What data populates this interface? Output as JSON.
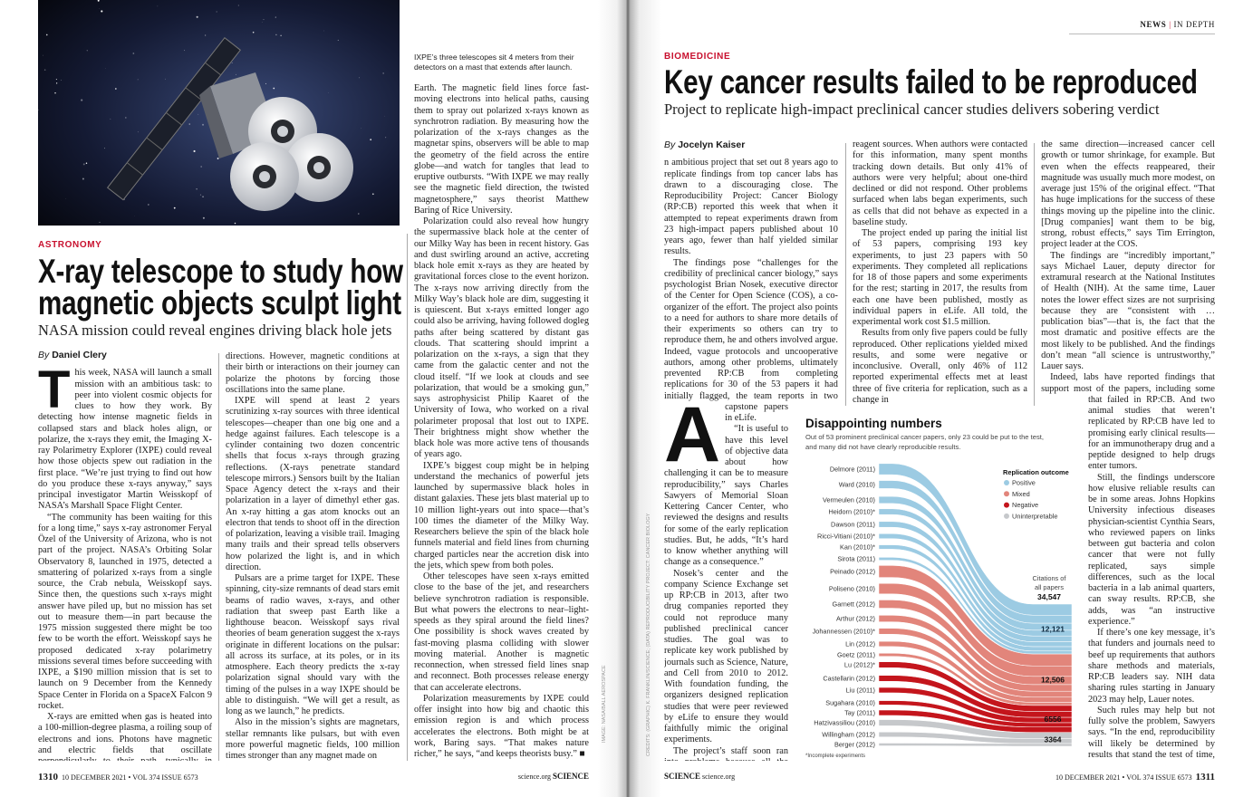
{
  "left_page": {
    "image_caption": "IXPE’s three telescopes sit 4 meters from their detectors on a mast that extends after launch.",
    "image_credit": "IMAGE: NASA/BALL AEROSPACE",
    "kicker": "ASTRONOMY",
    "headline_lines": [
      "X-ray telescope to study how",
      "magnetic objects sculpt light"
    ],
    "deck": "NASA mission could reveal engines driving black hole jets",
    "byline_prefix": "By",
    "byline_author": "Daniel Clery",
    "dropcap": "T",
    "col1": [
      "his week, NASA will launch a small mission with an ambitious task: to peer into violent cosmic objects for clues to how they work. By detecting how intense magnetic fields in collapsed stars and black holes align, or polarize, the x-rays they emit, the Imaging X-ray Polarimetry Explorer (IXPE) could reveal how those objects spew out radiation in the first place. “We’re just trying to find out how do you produce these x-rays anyway,” says principal investigator Martin Weisskopf of NASA’s Marshall Space Flight Center.",
      "“The community has been waiting for this for a long time,” says x-ray astronomer Feryal Özel of the University of Arizona, who is not part of the project. NASA’s Orbiting Solar Observatory 8, launched in 1975, detected a smattering of polarized x-rays from a single source, the Crab nebula, Weisskopf says. Since then, the questions such x-rays might answer have piled up, but no mission has set out to measure them—in part because the 1975 mission suggested there might be too few to be worth the effort. Weisskopf says he proposed dedicated x-ray polarimetry missions several times before succeeding with IXPE, a $190 million mission that is set to launch on 9 December from the Kennedy Space Center in Florida on a SpaceX Falcon 9 rocket.",
      "X-rays are emitted when gas is heated into a 100-million-degree plasma, a roiling soup of electrons and ions. Photons have magnetic and electric fields that oscillate perpendicularly to their path, typically in random"
    ],
    "col2": [
      "directions. However, magnetic conditions at their birth or interactions on their journey can polarize the photons by forcing those oscillations into the same plane.",
      "IXPE will spend at least 2 years scrutinizing x-ray sources with three identical telescopes—cheaper than one big one and a hedge against failures. Each telescope is a cylinder containing two dozen concentric shells that focus x-rays through grazing reflections. (X-rays penetrate standard telescope mirrors.) Sensors built by the Italian Space Agency detect the x-rays and their polarization in a layer of dimethyl ether gas. An x-ray hitting a gas atom knocks out an electron that tends to shoot off in the direction of polarization, leaving a visible trail. Imaging many trails and their spread tells observers how polarized the light is, and in which direction.",
      "Pulsars are a prime target for IXPE. These spinning, city-size remnants of dead stars emit beams of radio waves, x-rays, and other radiation that sweep past Earth like a lighthouse beacon. Weisskopf says rival theories of beam generation suggest the x-rays originate in different locations on the pulsar: all across its surface, at its poles, or in its atmosphere. Each theory predicts the x-ray polarization signal should vary with the timing of the pulses in a way IXPE should be able to distinguish. “We will get a result, as long as we launch,” he predicts.",
      "Also in the mission’s sights are magnetars, stellar remnants like pulsars, but with even more powerful magnetic fields, 100 million times stronger than any magnet made on"
    ],
    "col3": [
      "Earth. The magnetic field lines force fast-moving electrons into helical paths, causing them to spray out polarized x-rays known as synchrotron radiation. By measuring how the polarization of the x-rays changes as the magnetar spins, observers will be able to map the geometry of the field across the entire globe—and watch for tangles that lead to eruptive outbursts. “With IXPE we may really see the magnetic field direction, the twisted magnetosphere,” says theorist Matthew Baring of Rice University.",
      "Polarization could also reveal how hungry the supermassive black hole at the center of our Milky Way has been in recent history. Gas and dust swirling around an active, accreting black hole emit x-rays as they are heated by gravitational forces close to the event horizon. The x-rays now arriving directly from the Milky Way’s black hole are dim, suggesting it is quiescent. But x-rays emitted longer ago could also be arriving, having followed dogleg paths after being scattered by distant gas clouds. That scattering should imprint a polarization on the x-rays, a sign that they came from the galactic center and not the cloud itself. “If we look at clouds and see polarization, that would be a smoking gun,” says astrophysicist Philip Kaaret of the University of Iowa, who worked on a rival polarimeter proposal that lost out to IXPE. Their brightness might show whether the black hole was more active tens of thousands of years ago.",
      "IXPE’s biggest coup might be in helping understand the mechanics of powerful jets launched by supermassive black holes in distant galaxies. These jets blast material up to 10 million light-years out into space—that’s 100 times the diameter of the Milky Way. Researchers believe the spin of the black hole funnels material and field lines from churning charged particles near the accretion disk into the jets, which spew from both poles.",
      "Other telescopes have seen x-rays emitted close to the base of the jet, and researchers believe synchrotron radiation is responsible. But what powers the electrons to near–light-speeds as they spiral around the field lines? One possibility is shock waves created by fast-moving plasma colliding with slower moving material. Another is magnetic reconnection, when stressed field lines snap and reconnect. Both processes release energy that can accelerate electrons.",
      "Polarization measurements by IXPE could offer insight into how big and chaotic this emission region is and which process accelerates the electrons. Both might be at work, Baring says. “That makes nature richer,” he says, “and keeps theorists busy.” ■"
    ],
    "footer": {
      "page": "1310",
      "issue": "10 DECEMBER 2021 • VOL 374 ISSUE 6573",
      "site": "science.org",
      "brand": "SCIENCE"
    }
  },
  "right_page": {
    "section": "NEWS",
    "subsection": "IN DEPTH",
    "kicker": "BIOMEDICINE",
    "headline": "Key cancer results failed to be reproduced",
    "deck": "Project to replicate high-impact preclinical cancer studies delivers sobering verdict",
    "byline_prefix": "By",
    "byline_author": "Jocelyn Kaiser",
    "dropcap": "A",
    "graphic_credit": "CREDITS: (GRAPHIC) K. FRANKLIN/SCIENCE; (DATA) REPRODUCIBILITY PROJECT: CANCER BIOLOGY",
    "col1": [
      "n ambitious project that set out 8 years ago to replicate findings from top cancer labs has drawn to a discouraging close. The Reproducibility Project: Cancer Biology (RP:CB) reported this week that when it attempted to repeat experiments drawn from 23 high-impact papers published about 10 years ago, fewer than half yielded similar results.",
      "The findings pose “challenges for the credibility of preclinical cancer biology,” says psychologist Brian Nosek, executive director of the Center for Open Science (COS), a co-organizer of the effort. The project also points to a need for authors to share more details of their experiments so others can try to reproduce them, he and others involved argue. Indeed, vague protocols and uncooperative authors, among other problems, ultimately prevented RP:CB from completing replications for 30 of the 53 papers it had initially flagged, the team reports in two capstone papers in eLife.",
      "“It is useful to have this level of objective data about how challenging it can be to measure reproducibility,” says Charles Sawyers of Memorial Sloan Kettering Cancer Center, who reviewed the designs and results for some of the early replication studies. But, he adds, “It’s hard to know whether anything will change as a consequence.”",
      "Nosek’s center and the company Science Exchange set up RP:CB in 2013, after two drug companies reported they could not reproduce many published preclinical cancer studies. The goal was to replicate key work published by journals such as Science, Nature, and Cell from 2010 to 2012. With foundation funding, the organizers designed replication studies that were peer reviewed by eLife to ensure they would faithfully mimic the original experiments.",
      "The project’s staff soon ran into problems because all the original papers lacked details such as underlying data, protocols, statistical code, and"
    ],
    "col2": [
      "reagent sources. When authors were contacted for this information, many spent months tracking down details. But only 41% of authors were very helpful; about one-third declined or did not respond. Other problems surfaced when labs began experiments, such as cells that did not behave as expected in a baseline study.",
      "The project ended up paring the initial list of 53 papers, comprising 193 key experiments, to just 23 papers with 50 experiments. They completed all replications for 18 of those papers and some experiments for the rest; starting in 2017, the results from each one have been published, mostly as individual papers in eLife. All told, the experimental work cost $1.5 million.",
      "Results from only five papers could be fully reproduced. Other replications yielded mixed results, and some were negative or inconclusive. Overall, only 46% of 112 reported experimental effects met at least three of five criteria for replication, such as a change in"
    ],
    "col3": [
      "the same direction—increased cancer cell growth or tumor shrinkage, for example. But even when the effects reappeared, their magnitude was usually much more modest, on average just 15% of the original effect. “That has huge implications for the success of these things moving up the pipeline into the clinic. [Drug companies] want them to be big, strong, robust effects,” says Tim Errington, project leader at the COS.",
      "The findings are “incredibly important,” says Michael Lauer, deputy director for extramural research at the National Institutes of Health (NIH). At the same time, Lauer notes the lower effect sizes are not surprising because they are “consistent with … publication bias”—that is, the fact that the most dramatic and positive effects are the most likely to be published. And the findings don’t mean “all science is untrustworthy,” Lauer says.",
      "Indeed, labs have reported findings that support most of the papers, including some that failed in RP:CB. And two animal studies that weren’t replicated by RP:CB have led to promising early clinical results—for an immunotherapy drug and a peptide designed to help drugs enter tumors.",
      "Still, the findings underscore how elusive reliable results can be in some areas. Johns Hopkins University infectious diseases physician-scientist Cynthia Sears, who reviewed papers on links between gut bacteria and colon cancer that were not fully replicated, says simple differences, such as the local bacteria in a lab animal quarters, can sway results. RP:CB, she adds, was “an instructive experience.”",
      "If there’s one key message, it’s that funders and journals need to beef up requirements that authors share methods and materials, RP:CB leaders say. NIH data sharing rules starting in January 2023 may help, Lauer notes.",
      "Such rules may help but not fully solve the problem, Sawyers says. “In the end, reproducibility will likely be determined by results that stand the test of time, with confirmation and extension of the key findings by other labs.” ■"
    ],
    "footer": {
      "page": "1311",
      "issue": "10 DECEMBER 2021 • VOL 374 ISSUE 6573",
      "site": "science.org",
      "brand": "SCIENCE"
    }
  },
  "chart_data": {
    "type": "sankey",
    "title": "Disappointing numbers",
    "subtitle_lines": [
      "Out of 53 prominent preclinical cancer papers, only 23 could be put to the test,",
      "and many did not have clearly reproducible results."
    ],
    "legend_title": "Replication outcome",
    "legend_placement": "top-right",
    "outcomes": [
      {
        "name": "Positive",
        "color": "#9ccbe3",
        "total": 12121,
        "total_label": "12,121"
      },
      {
        "name": "Mixed",
        "color": "#e2857b",
        "total": 12506,
        "total_label": "12,506"
      },
      {
        "name": "Negative",
        "color": "#c4151c",
        "total": 6556,
        "total_label": "6556"
      },
      {
        "name": "Uninterpretable",
        "color": "#c6c8cb",
        "total": 3364,
        "total_label": "3364"
      }
    ],
    "total_label_lines": [
      "Citations of",
      "all papers"
    ],
    "total_value": "34,547",
    "footnote": "*Incomplete experiments",
    "papers": [
      {
        "label": "Delmore (2011)",
        "outcome": 0,
        "citations": 2700
      },
      {
        "label": "Ward (2010)",
        "outcome": 0,
        "citations": 1950
      },
      {
        "label": "Vermeulen (2010)",
        "outcome": 0,
        "citations": 1700
      },
      {
        "label": "Heidorn (2010)*",
        "outcome": 0,
        "citations": 1400
      },
      {
        "label": "Dawson (2011)",
        "outcome": 0,
        "citations": 1400
      },
      {
        "label": "Ricci-Vitiani (2010)*",
        "outcome": 0,
        "citations": 1200
      },
      {
        "label": "Kan (2010)*",
        "outcome": 0,
        "citations": 1050
      },
      {
        "label": "Sirota (2011)",
        "outcome": 0,
        "citations": 721
      },
      {
        "label": "Peinado (2012)",
        "outcome": 1,
        "citations": 2900
      },
      {
        "label": "Poliseno (2010)",
        "outcome": 1,
        "citations": 2550
      },
      {
        "label": "Garnett (2012)",
        "outcome": 1,
        "citations": 2000
      },
      {
        "label": "Arthur (2012)",
        "outcome": 1,
        "citations": 1600
      },
      {
        "label": "Johannessen (2010)*",
        "outcome": 1,
        "citations": 1450
      },
      {
        "label": "Lin (2012)",
        "outcome": 1,
        "citations": 1250
      },
      {
        "label": "Goetz (2011)",
        "outcome": 1,
        "citations": 756
      },
      {
        "label": "Lu (2012)*",
        "outcome": 2,
        "citations": 1450
      },
      {
        "label": "Castellarin (2012)",
        "outcome": 2,
        "citations": 1450
      },
      {
        "label": "Liu (2011)",
        "outcome": 2,
        "citations": 1300
      },
      {
        "label": "Sugahara (2010)",
        "outcome": 2,
        "citations": 1050
      },
      {
        "label": "Tay (2011)",
        "outcome": 2,
        "citations": 1306
      },
      {
        "label": "Hatzivassiliou (2010)",
        "outcome": 3,
        "citations": 1500
      },
      {
        "label": "Willingham (2012)",
        "outcome": 3,
        "citations": 1200
      },
      {
        "label": "Berger (2012)",
        "outcome": 3,
        "citations": 664
      }
    ]
  }
}
